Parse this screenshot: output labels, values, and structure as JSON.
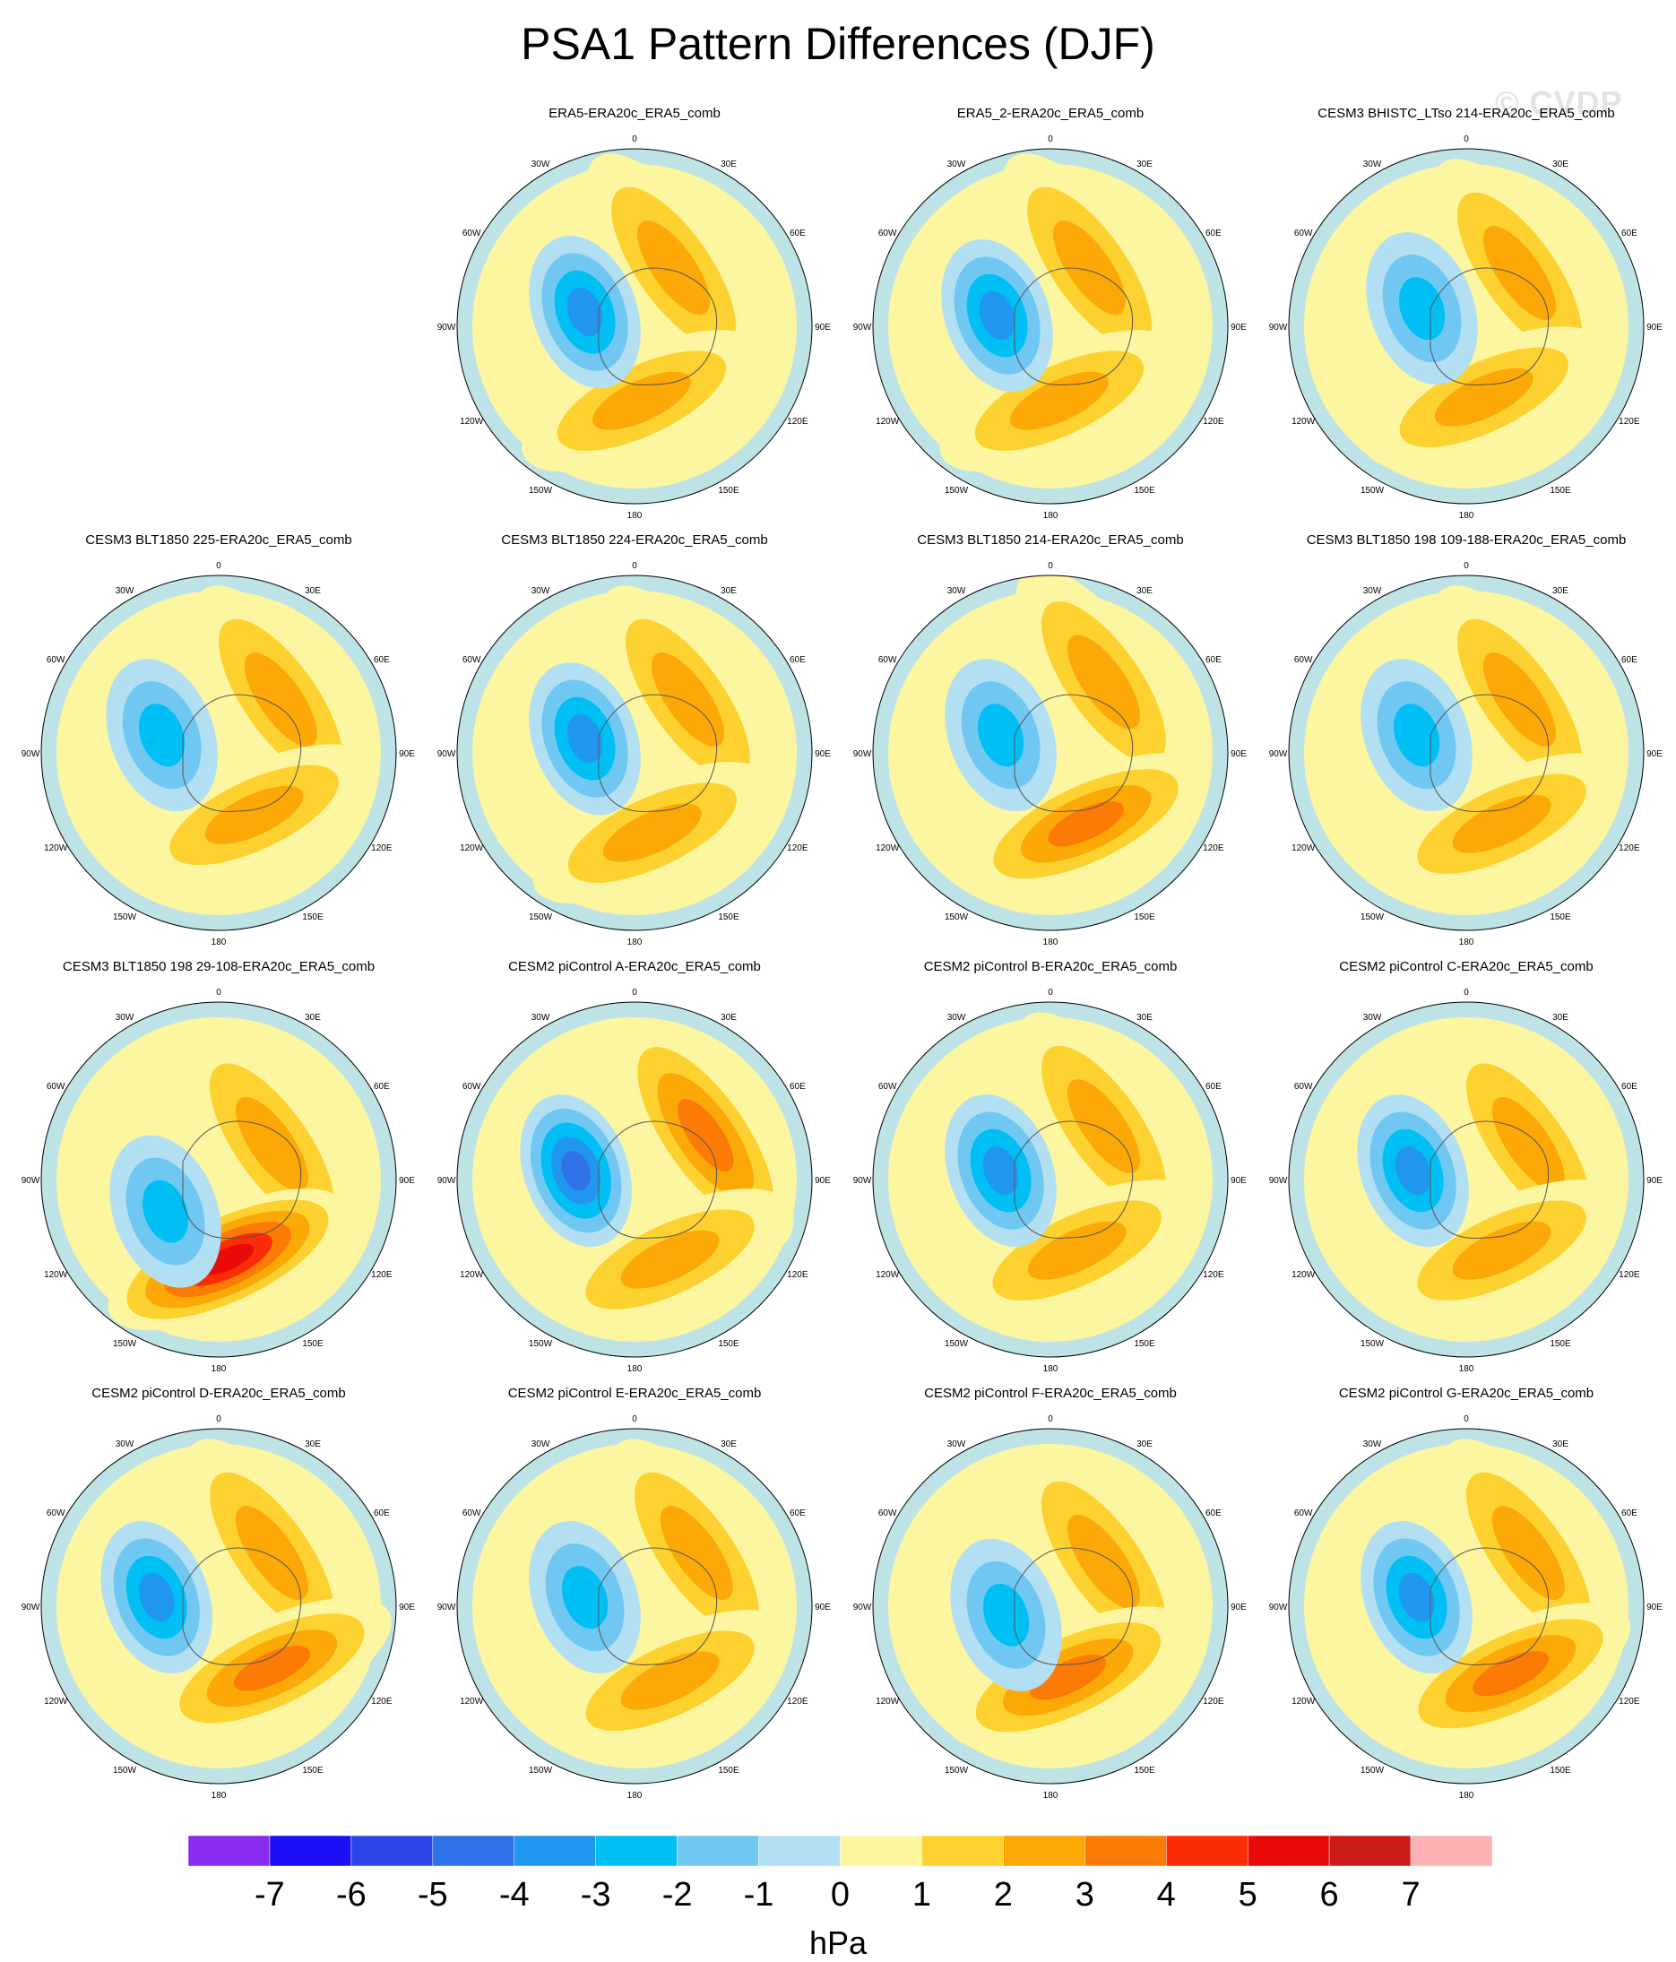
{
  "title": "PSA1 Pattern Differences (DJF)",
  "watermark": "© CVDP",
  "lon_labels": [
    "0",
    "30E",
    "60E",
    "90E",
    "120E",
    "150E",
    "180",
    "150W",
    "120W",
    "90W",
    "60W",
    "30W"
  ],
  "panels": [
    {
      "title": "ERA5-ERA20c_ERA5_comb",
      "row": 0,
      "col": 1,
      "low": [
        -0.28,
        -0.08,
        -4
      ],
      "high1": [
        0.22,
        -0.33,
        2.5
      ],
      "high2": [
        0.04,
        0.42,
        3
      ]
    },
    {
      "title": "ERA5_2-ERA20c_ERA5_comb",
      "row": 0,
      "col": 2,
      "low": [
        -0.3,
        -0.06,
        -4
      ],
      "high1": [
        0.22,
        -0.33,
        2.5
      ],
      "high2": [
        0.05,
        0.42,
        3
      ]
    },
    {
      "title": "CESM3 BHISTC_LTso 214-ERA20c_ERA5_comb",
      "row": 0,
      "col": 3,
      "low": [
        -0.25,
        -0.1,
        -3
      ],
      "high1": [
        0.3,
        -0.3,
        3
      ],
      "high2": [
        0.1,
        0.4,
        2.5
      ]
    },
    {
      "title": "CESM3 BLT1850 225-ERA20c_ERA5_comb",
      "row": 1,
      "col": 0,
      "low": [
        -0.32,
        -0.1,
        -3
      ],
      "high1": [
        0.35,
        -0.3,
        3
      ],
      "high2": [
        0.2,
        0.35,
        2.5
      ]
    },
    {
      "title": "CESM3 BLT1850 224-ERA20c_ERA5_comb",
      "row": 1,
      "col": 1,
      "low": [
        -0.28,
        -0.08,
        -3.5
      ],
      "high1": [
        0.3,
        -0.3,
        2.5
      ],
      "high2": [
        0.1,
        0.45,
        3
      ]
    },
    {
      "title": "CESM3 BLT1850 214-ERA20c_ERA5_comb",
      "row": 1,
      "col": 2,
      "low": [
        -0.28,
        -0.1,
        -3
      ],
      "high1": [
        0.3,
        -0.4,
        3
      ],
      "high2": [
        0.2,
        0.4,
        3.5
      ]
    },
    {
      "title": "CESM3 BLT1850 198 109-188-ERA20c_ERA5_comb",
      "row": 1,
      "col": 3,
      "low": [
        -0.28,
        -0.1,
        -3
      ],
      "high1": [
        0.3,
        -0.3,
        2.5
      ],
      "high2": [
        0.2,
        0.4,
        3
      ]
    },
    {
      "title": "CESM3 BLT1850 198 29-108-ERA20c_ERA5_comb",
      "row": 2,
      "col": 0,
      "low": [
        -0.3,
        0.18,
        -3
      ],
      "high1": [
        0.3,
        -0.2,
        2.5
      ],
      "high2": [
        0.05,
        0.45,
        6
      ]
    },
    {
      "title": "CESM2 piControl A-ERA20c_ERA5_comb",
      "row": 2,
      "col": 1,
      "low": [
        -0.33,
        -0.05,
        -5
      ],
      "high1": [
        0.4,
        -0.25,
        3.5
      ],
      "high2": [
        0.2,
        0.45,
        3
      ]
    },
    {
      "title": "CESM2 piControl B-ERA20c_ERA5_comb",
      "row": 2,
      "col": 2,
      "low": [
        -0.28,
        -0.05,
        -3.5
      ],
      "high1": [
        0.3,
        -0.3,
        2.5
      ],
      "high2": [
        0.15,
        0.4,
        3
      ]
    },
    {
      "title": "CESM2 piControl C-ERA20c_ERA5_comb",
      "row": 2,
      "col": 3,
      "low": [
        -0.3,
        -0.05,
        -3.5
      ],
      "high1": [
        0.35,
        -0.2,
        3
      ],
      "high2": [
        0.2,
        0.4,
        3
      ]
    },
    {
      "title": "CESM2 piControl D-ERA20c_ERA5_comb",
      "row": 3,
      "col": 0,
      "low": [
        -0.35,
        -0.05,
        -3.5
      ],
      "high1": [
        0.3,
        -0.3,
        3
      ],
      "high2": [
        0.3,
        0.35,
        3.5
      ]
    },
    {
      "title": "CESM2 piControl E-ERA20c_ERA5_comb",
      "row": 3,
      "col": 1,
      "low": [
        -0.28,
        -0.05,
        -3
      ],
      "high1": [
        0.35,
        -0.3,
        3
      ],
      "high2": [
        0.2,
        0.42,
        3
      ]
    },
    {
      "title": "CESM2 piControl F-ERA20c_ERA5_comb",
      "row": 3,
      "col": 2,
      "low": [
        -0.25,
        0.05,
        -3
      ],
      "high1": [
        0.3,
        -0.25,
        3
      ],
      "high2": [
        0.1,
        0.4,
        4
      ]
    },
    {
      "title": "CESM2 piControl G-ERA20c_ERA5_comb",
      "row": 3,
      "col": 3,
      "low": [
        -0.28,
        -0.05,
        -3.5
      ],
      "high1": [
        0.35,
        -0.3,
        3
      ],
      "high2": [
        0.25,
        0.38,
        3.5
      ]
    }
  ],
  "colorbar": {
    "colors": [
      "#8a2bf0",
      "#1a0ff5",
      "#2b46e6",
      "#2f72e8",
      "#2196ee",
      "#00bff5",
      "#70c8f2",
      "#b3dff2",
      "#fdf6a0",
      "#fdd230",
      "#fca908",
      "#fc7a06",
      "#fc2c06",
      "#e90a0a",
      "#cc1b1b",
      "#fcb2b2"
    ],
    "labels": [
      "-7",
      "-6",
      "-5",
      "-4",
      "-3",
      "-2",
      "-1",
      "0",
      "1",
      "2",
      "3",
      "4",
      "5",
      "6",
      "7"
    ],
    "units": "hPa"
  }
}
